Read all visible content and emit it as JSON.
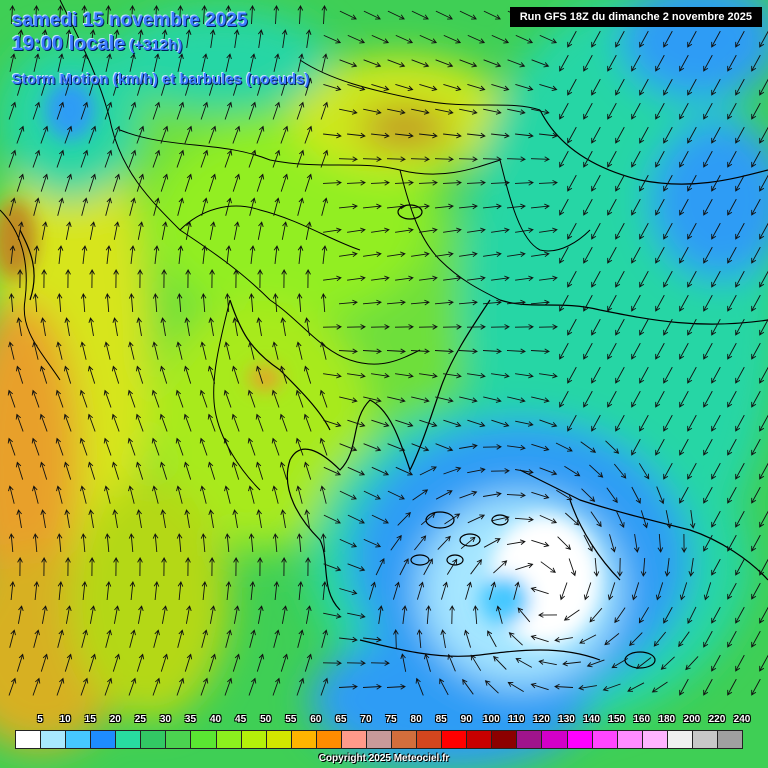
{
  "header": {
    "date": "samedi 15 novembre 2025",
    "time": "19:00 locale",
    "offset": "(+312h)",
    "subtitle": "Storm Motion (km/h) et barbules (noeuds)"
  },
  "run_info": "Run GFS 18Z du dimanche 2 novembre 2025",
  "legend": {
    "labels": [
      "5",
      "10",
      "15",
      "20",
      "25",
      "30",
      "35",
      "40",
      "45",
      "50",
      "55",
      "60",
      "65",
      "70",
      "75",
      "80",
      "85",
      "90",
      "100",
      "110",
      "120",
      "130",
      "140",
      "150",
      "160",
      "180",
      "200",
      "220",
      "240"
    ],
    "colors": [
      "#ffffff",
      "#a8e8ff",
      "#46c8ff",
      "#1e8cff",
      "#28dca0",
      "#32c864",
      "#4bd250",
      "#5ae632",
      "#8cf01e",
      "#b4f00a",
      "#d2e600",
      "#ffb400",
      "#ff8c00",
      "#ff9a8a",
      "#c89a9a",
      "#d26e3c",
      "#d2461e",
      "#ff0000",
      "#c80000",
      "#8c0000",
      "#a0148c",
      "#d200c8",
      "#ff00ff",
      "#ff46ff",
      "#ff8cff",
      "#ffb4ff",
      "#f0f0f0",
      "#c8c8c8",
      "#a0a0a0"
    ]
  },
  "copyright": "Copyright 2025 Meteociel.fr",
  "map": {
    "colors": {
      "blue": "#2f9cf5",
      "cyan": "#25d6a5",
      "green": "#3fcf55",
      "lime": "#92ee22",
      "yellow": "#d7e51a",
      "olive": "#b4c20a",
      "orange": "#e8a02a",
      "pale_blue": "#a6e6ff",
      "white": "#ffffff",
      "coast": "#000000",
      "arrow": "#111111"
    }
  }
}
